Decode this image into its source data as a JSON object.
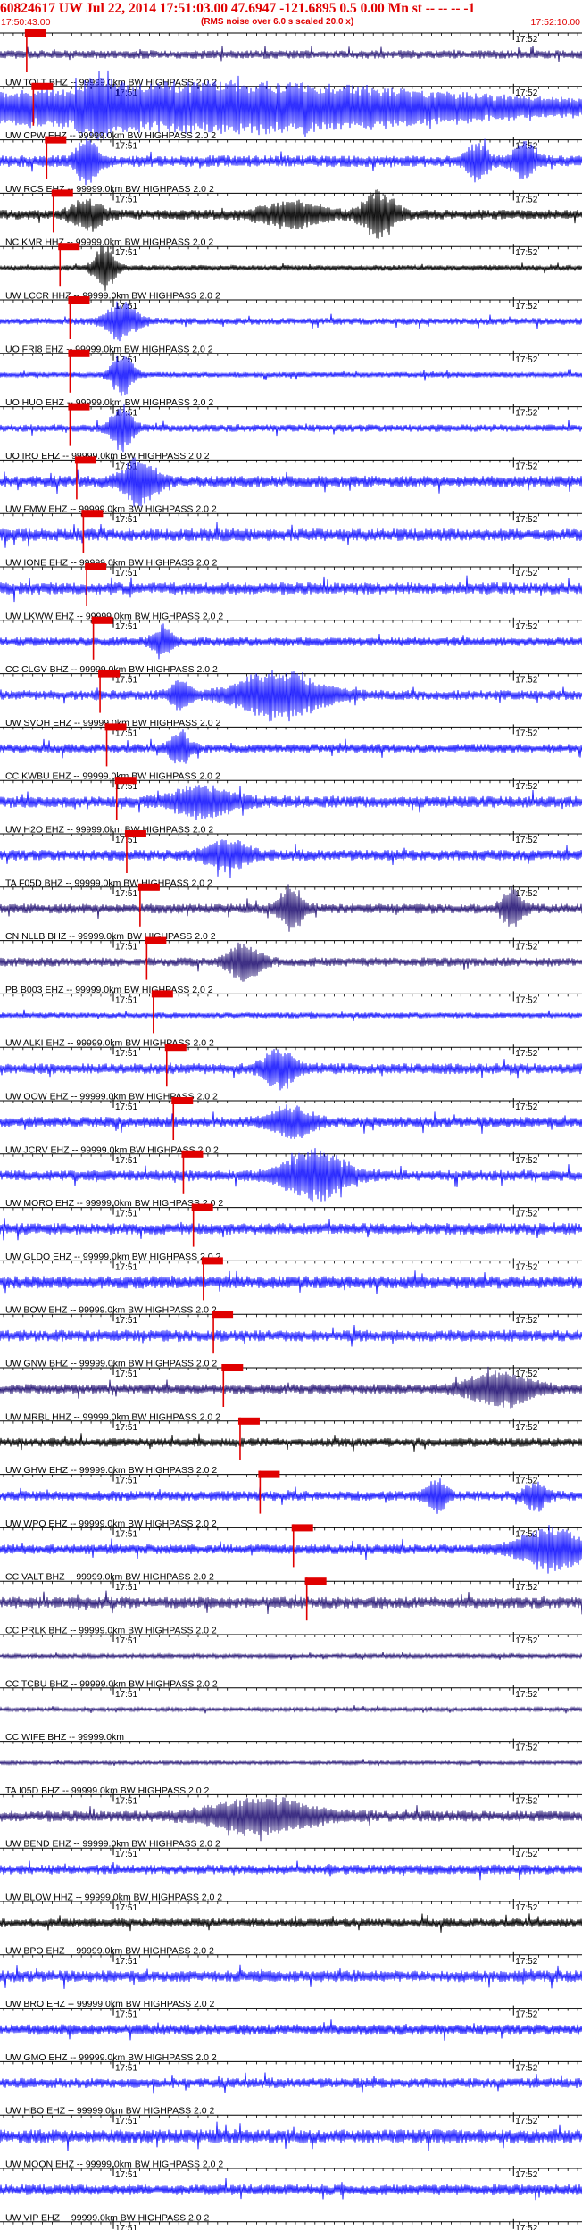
{
  "header": {
    "title": "60824617 UW Jul 22, 2014 17:51:03.00   47.6947 -121.6895  0.5 0.00 Mn st -- -- -- -1",
    "start_time": "17:50:43.00",
    "note": "(RMS noise over 6.0 s scaled 20.0 x)",
    "end_time": "17:52:10.00"
  },
  "colors": {
    "pick": "#e00000",
    "trace_blue": "#1a1aff",
    "trace_black": "#000000",
    "trace_purple": "#2a1a78",
    "grid": "#000000"
  },
  "chart_data": {
    "type": "line",
    "title": "60824617 UW Jul 22, 2014 17:51:03.00   47.6947 -121.6895  0.5 0.00 Mn st -- -- -- -1",
    "x_range": [
      "17:50:43.00",
      "17:52:10.00"
    ],
    "time_tick_labels": [
      "17:51",
      "17:52"
    ],
    "series": [
      {
        "label": "",
        "color": "purple",
        "pick": "17:50:47.0",
        "activity": 0.28,
        "events": [],
        "first_tick_visible": false
      },
      {
        "label": "UW TOLT BHZ -- 99999.0km BW  HIGHPASS  2.0  2",
        "color": "blue",
        "pick": "17:50:48.0",
        "activity": 0.4,
        "events": [
          [
            17,
            0.6,
            3
          ],
          [
            38,
            1.0,
            50
          ]
        ],
        "first_tick_visible": true
      },
      {
        "label": "UW CPW EHZ -- 99999.0km BW  HIGHPASS  2.0  2",
        "color": "blue",
        "pick": "17:50:50.0",
        "activity": 0.45,
        "events": [
          [
            15,
            1.0,
            2
          ],
          [
            82,
            0.7,
            2
          ],
          [
            90,
            0.8,
            2
          ]
        ],
        "first_tick_visible": true
      },
      {
        "label": "UW RCS EHZ -- 99999.0km BW  HIGHPASS  2.0  2",
        "color": "black",
        "pick": "17:50:51.0",
        "activity": 0.35,
        "events": [
          [
            15,
            0.6,
            3
          ],
          [
            50,
            0.5,
            6
          ],
          [
            65,
            1.0,
            3
          ]
        ],
        "first_tick_visible": true
      },
      {
        "label": "NC KMR HHZ -- 99999.0km BW  HIGHPASS  2.0  2",
        "color": "black",
        "pick": "17:50:52.0",
        "activity": 0.12,
        "events": [
          [
            18,
            1.0,
            2
          ]
        ],
        "first_tick_visible": true
      },
      {
        "label": "UW LCCR HHZ -- 99999.0km BW  HIGHPASS  2.0  2",
        "color": "blue",
        "pick": "17:50:53.5",
        "activity": 0.18,
        "events": [
          [
            21,
            0.8,
            3
          ]
        ],
        "first_tick_visible": true
      },
      {
        "label": "UO FRI8 EHZ -- 99999.0km BW  HIGHPASS  2.0  2",
        "color": "blue",
        "pick": "17:50:53.5",
        "activity": 0.1,
        "events": [
          [
            21,
            1.0,
            2
          ]
        ],
        "first_tick_visible": true
      },
      {
        "label": "UO HUO EHZ -- 99999.0km BW  HIGHPASS  2.0  2",
        "color": "blue",
        "pick": "17:50:53.5",
        "activity": 0.22,
        "events": [
          [
            21,
            1.0,
            2
          ]
        ],
        "first_tick_visible": true
      },
      {
        "label": "UO IRO EHZ -- 99999.0km BW  HIGHPASS  2.0  2",
        "color": "blue",
        "pick": "17:50:54.5",
        "activity": 0.45,
        "events": [
          [
            24,
            1.0,
            3
          ]
        ],
        "first_tick_visible": true
      },
      {
        "label": "UW FMW EHZ -- 99999.0km BW  HIGHPASS  2.0  2",
        "color": "blue",
        "pick": "17:50:55.5",
        "activity": 0.5,
        "events": [],
        "first_tick_visible": true
      },
      {
        "label": "UW IONE EHZ -- 99999.0km BW  HIGHPASS  2.0  2",
        "color": "blue",
        "pick": "17:50:56.0",
        "activity": 0.5,
        "events": [],
        "first_tick_visible": true
      },
      {
        "label": "UW LKWW EHZ -- 99999.0km BW  HIGHPASS  2.0  2",
        "color": "blue",
        "pick": "17:50:57.0",
        "activity": 0.3,
        "events": [
          [
            28,
            0.6,
            2
          ]
        ],
        "first_tick_visible": true
      },
      {
        "label": "CC CLGV BHZ -- 99999.0km BW  HIGHPASS  2.0  2",
        "color": "blue",
        "pick": "17:50:58.0",
        "activity": 0.35,
        "events": [
          [
            48,
            1.0,
            8
          ],
          [
            31,
            0.5,
            2
          ]
        ],
        "first_tick_visible": true
      },
      {
        "label": "UW SVOH EHZ -- 99999.0km BW  HIGHPASS  2.0  2",
        "color": "blue",
        "pick": "17:50:59.0",
        "activity": 0.3,
        "events": [
          [
            31,
            0.7,
            2
          ]
        ],
        "first_tick_visible": true
      },
      {
        "label": "CC KWBU EHZ -- 99999.0km BW  HIGHPASS  2.0  2",
        "color": "blue",
        "pick": "17:51:00.5",
        "activity": 0.45,
        "events": [
          [
            35,
            0.6,
            6
          ]
        ],
        "first_tick_visible": true
      },
      {
        "label": "UW H2O EHZ -- 99999.0km BW  HIGHPASS  2.0  2",
        "color": "blue",
        "pick": "17:51:02.0",
        "activity": 0.4,
        "events": [
          [
            39,
            0.6,
            4
          ]
        ],
        "first_tick_visible": true
      },
      {
        "label": "TA F05D BHZ -- 99999.0km BW  HIGHPASS  2.0  2",
        "color": "purple",
        "pick": "17:51:04.0",
        "activity": 0.35,
        "events": [
          [
            50,
            1.0,
            2
          ],
          [
            88,
            0.8,
            2
          ]
        ],
        "first_tick_visible": true
      },
      {
        "label": "CN NLLB BHZ -- 99999.0km BW  HIGHPASS  2.0  2",
        "color": "purple",
        "pick": "17:51:05.0",
        "activity": 0.3,
        "events": [
          [
            42,
            0.8,
            3
          ]
        ],
        "first_tick_visible": true
      },
      {
        "label": "PB B003 EHZ -- 99999.0km BW  HIGHPASS  2.0  2",
        "color": "blue",
        "pick": "17:51:06.0",
        "activity": 0.12,
        "events": [],
        "first_tick_visible": true
      },
      {
        "label": "UW ALKI EHZ -- 99999.0km BW  HIGHPASS  2.0  2",
        "color": "blue",
        "pick": "17:51:08.0",
        "activity": 0.4,
        "events": [
          [
            48,
            0.8,
            3
          ]
        ],
        "first_tick_visible": true
      },
      {
        "label": "UW OOW EHZ -- 99999.0km BW  HIGHPASS  2.0  2",
        "color": "blue",
        "pick": "17:51:09.0",
        "activity": 0.4,
        "events": [
          [
            50,
            0.6,
            4
          ]
        ],
        "first_tick_visible": true
      },
      {
        "label": "UW JCRV EHZ -- 99999.0km BW  HIGHPASS  2.0  2",
        "color": "blue",
        "pick": "17:51:10.5",
        "activity": 0.4,
        "events": [
          [
            54,
            1.0,
            6
          ]
        ],
        "first_tick_visible": true
      },
      {
        "label": "UW MORO EHZ -- 99999.0km BW  HIGHPASS  2.0  2",
        "color": "blue",
        "pick": "17:51:12.0",
        "activity": 0.45,
        "events": [],
        "first_tick_visible": true
      },
      {
        "label": "UW GLDO EHZ -- 99999.0km BW  HIGHPASS  2.0  2",
        "color": "blue",
        "pick": "17:51:13.5",
        "activity": 0.5,
        "events": [],
        "first_tick_visible": true
      },
      {
        "label": "UW BOW EHZ -- 99999.0km BW  HIGHPASS  2.0  2",
        "color": "blue",
        "pick": "17:51:15.0",
        "activity": 0.45,
        "events": [],
        "first_tick_visible": true
      },
      {
        "label": "UW GNW BHZ -- 99999.0km BW  HIGHPASS  2.0  2",
        "color": "purple",
        "pick": "17:51:16.5",
        "activity": 0.35,
        "events": [
          [
            86,
            0.7,
            6
          ]
        ],
        "first_tick_visible": true
      },
      {
        "label": "UW MRBL HHZ -- 99999.0km BW  HIGHPASS  2.0  2",
        "color": "black",
        "pick": "17:51:19.0",
        "activity": 0.3,
        "events": [],
        "first_tick_visible": true
      },
      {
        "label": "UW GHW EHZ -- 99999.0km BW  HIGHPASS  2.0  2",
        "color": "blue",
        "pick": "17:51:22.0",
        "activity": 0.35,
        "events": [
          [
            75,
            0.6,
            2
          ],
          [
            92,
            0.6,
            2
          ]
        ],
        "first_tick_visible": true
      },
      {
        "label": "UW WPO EHZ -- 99999.0km BW  HIGHPASS  2.0  2",
        "color": "blue",
        "pick": "17:51:27.0",
        "activity": 0.35,
        "events": [
          [
            95,
            0.9,
            6
          ]
        ],
        "first_tick_visible": true
      },
      {
        "label": "CC VALT BHZ -- 99999.0km BW  HIGHPASS  2.0  2",
        "color": "purple",
        "pick": "17:51:29.0",
        "activity": 0.45,
        "events": [],
        "first_tick_visible": true
      },
      {
        "label": "CC PRLK BHZ -- 99999.0km BW  HIGHPASS  2.0  2",
        "color": "purple",
        "pick": "",
        "activity": 0.02,
        "events": [],
        "first_tick_visible": true
      },
      {
        "label": "CC TCBU BHZ -- 99999.0km BW  HIGHPASS  2.0  2",
        "color": "purple",
        "pick": "",
        "activity": 0.02,
        "events": [],
        "first_tick_visible": true
      },
      {
        "label": "CC WIFE BHZ -- 99999.0km",
        "color": "purple",
        "pick": "",
        "activity": 0.0,
        "events": [],
        "first_tick_visible": false
      },
      {
        "label": "TA I05D BHZ -- 99999.0km BW  HIGHPASS  2.0  2",
        "color": "purple",
        "pick": "",
        "activity": 0.4,
        "events": [
          [
            45,
            0.7,
            10
          ]
        ],
        "first_tick_visible": true
      },
      {
        "label": "UW BEND EHZ -- 99999.0km BW  HIGHPASS  2.0  2",
        "color": "blue",
        "pick": "",
        "activity": 0.35,
        "events": [],
        "first_tick_visible": true
      },
      {
        "label": "UW BLOW HHZ -- 99999.0km BW  HIGHPASS  2.0  2",
        "color": "black",
        "pick": "",
        "activity": 0.3,
        "events": [],
        "first_tick_visible": true
      },
      {
        "label": "UW BPO EHZ -- 99999.0km BW  HIGHPASS  2.0  2",
        "color": "blue",
        "pick": "",
        "activity": 0.45,
        "events": [],
        "first_tick_visible": true
      },
      {
        "label": "UW BRO EHZ -- 99999.0km BW  HIGHPASS  2.0  2",
        "color": "blue",
        "pick": "",
        "activity": 0.4,
        "events": [],
        "first_tick_visible": true
      },
      {
        "label": "UW GMO EHZ -- 99999.0km BW  HIGHPASS  2.0  2",
        "color": "blue",
        "pick": "",
        "activity": 0.35,
        "events": [],
        "first_tick_visible": true
      },
      {
        "label": "UW HBO EHZ -- 99999.0km BW  HIGHPASS  2.0  2",
        "color": "blue",
        "pick": "",
        "activity": 0.6,
        "events": [],
        "first_tick_visible": true
      },
      {
        "label": "UW MOON EHZ -- 99999.0km BW  HIGHPASS  2.0  2",
        "color": "blue",
        "pick": "",
        "activity": 0.4,
        "events": [],
        "first_tick_visible": true
      },
      {
        "label": "UW VIP EHZ -- 99999.0km BW  HIGHPASS  2.0  2",
        "color": "blue",
        "pick": "",
        "activity": 0.45,
        "events": [],
        "first_tick_visible": true
      }
    ]
  }
}
